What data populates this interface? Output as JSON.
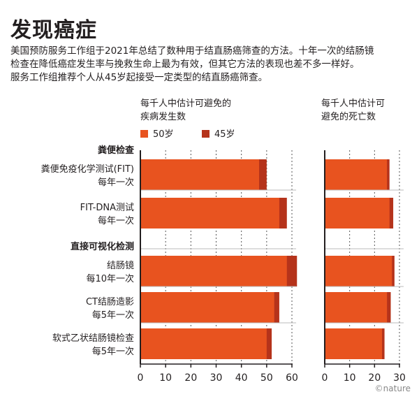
{
  "header": {
    "title": "发现癌症",
    "description": [
      "美国预防服务工作组于2021年总结了数种用于结直肠癌筛查的方法。十年一次的结肠镜",
      "检查在降低癌症发生率与挽救生命上最为有效，但其它方法的表现也差不多一样好。",
      "服务工作组推荐个人从45岁起接受一定类型的结直肠癌筛查。"
    ]
  },
  "credit": "©nature",
  "colors": {
    "age50": "#e8531f",
    "age45": "#b5331b",
    "axis": "#231f20",
    "grid": "#555555"
  },
  "chart_data": [
    {
      "type": "bar",
      "title": "每千人中估计可避免的疾病发生数",
      "title_lines": [
        "每千人中估计可避免的",
        "疾病发生数"
      ],
      "legend": [
        "50岁",
        "45岁"
      ],
      "legend_placement": "top-left",
      "groups": [
        {
          "label": "粪便检查",
          "categories": [
            0,
            1
          ]
        },
        {
          "label": "直接可视化检测",
          "categories": [
            2,
            3,
            4
          ]
        }
      ],
      "categories": [
        [
          "粪便免疫化学测试(FIT)",
          "每年一次"
        ],
        [
          "FIT-DNA测试",
          "每年一次"
        ],
        [
          "结肠镜",
          "每10年一次"
        ],
        [
          "CT结肠造影",
          "每5年一次"
        ],
        [
          "软式乙状结肠镜检查",
          "每5年一次"
        ]
      ],
      "series": [
        {
          "name": "50岁",
          "values": [
            47,
            55,
            58,
            53,
            50
          ]
        },
        {
          "name": "45岁",
          "values": [
            50,
            58,
            62,
            55,
            52
          ]
        }
      ],
      "xlim": [
        0,
        60
      ],
      "xticks": [
        0,
        10,
        20,
        30,
        40,
        50,
        60
      ],
      "grid": "vertical dashed"
    },
    {
      "type": "bar",
      "title": "每千人中估计可避免的死亡数",
      "title_lines": [
        "每千人中估计可",
        "避免的死亡数"
      ],
      "categories": [
        [
          "粪便免疫化学测试(FIT)",
          "每年一次"
        ],
        [
          "FIT-DNA测试",
          "每年一次"
        ],
        [
          "结肠镜",
          "每10年一次"
        ],
        [
          "CT结肠造影",
          "每5年一次"
        ],
        [
          "软式乙状结肠镜检查",
          "每5年一次"
        ]
      ],
      "series": [
        {
          "name": "50岁",
          "values": [
            25,
            26,
            27,
            25,
            23
          ]
        },
        {
          "name": "45岁",
          "values": [
            26,
            27.5,
            28,
            26.5,
            24
          ]
        }
      ],
      "xlim": [
        0,
        30
      ],
      "xticks": [
        0,
        10,
        20,
        30
      ],
      "grid": "vertical dashed"
    }
  ]
}
